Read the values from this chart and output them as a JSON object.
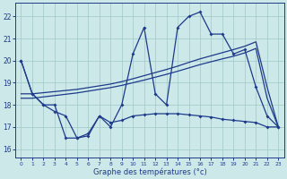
{
  "bg_color": "#cce8e8",
  "line_color": "#1e3a8a",
  "grid_color": "#9ec8c8",
  "xlabel": "Graphe des températures (°c)",
  "ylim": [
    15.6,
    22.6
  ],
  "xlim": [
    -0.5,
    23.5
  ],
  "yticks": [
    16,
    17,
    18,
    19,
    20,
    21,
    22
  ],
  "xticks": [
    0,
    1,
    2,
    3,
    4,
    5,
    6,
    7,
    8,
    9,
    10,
    11,
    12,
    13,
    14,
    15,
    16,
    17,
    18,
    19,
    20,
    21,
    22,
    23
  ],
  "hours": [
    0,
    1,
    2,
    3,
    4,
    5,
    6,
    7,
    8,
    9,
    10,
    11,
    12,
    13,
    14,
    15,
    16,
    17,
    18,
    19,
    20,
    21,
    22,
    23
  ],
  "line_jagged": [
    20.0,
    18.5,
    18.0,
    18.0,
    16.5,
    16.5,
    16.7,
    17.5,
    17.0,
    18.0,
    20.3,
    21.5,
    18.5,
    18.0,
    21.5,
    22.0,
    22.2,
    21.2,
    21.2,
    20.3,
    20.5,
    18.8,
    17.5,
    17.0
  ],
  "line_reg_hi": [
    18.5,
    18.5,
    18.55,
    18.6,
    18.65,
    18.7,
    18.78,
    18.86,
    18.94,
    19.05,
    19.18,
    19.32,
    19.46,
    19.6,
    19.75,
    19.92,
    20.08,
    20.22,
    20.36,
    20.5,
    20.65,
    20.85,
    18.8,
    17.0
  ],
  "line_reg_lo": [
    18.3,
    18.3,
    18.36,
    18.42,
    18.48,
    18.54,
    18.62,
    18.7,
    18.78,
    18.88,
    19.0,
    19.12,
    19.25,
    19.38,
    19.52,
    19.67,
    19.82,
    19.95,
    20.08,
    20.2,
    20.35,
    20.55,
    18.3,
    17.0
  ],
  "line_flat": [
    20.0,
    18.5,
    18.0,
    17.7,
    17.5,
    16.5,
    16.6,
    17.5,
    17.2,
    17.3,
    17.5,
    17.55,
    17.6,
    17.6,
    17.6,
    17.55,
    17.5,
    17.45,
    17.35,
    17.3,
    17.25,
    17.2,
    17.0,
    17.0
  ]
}
